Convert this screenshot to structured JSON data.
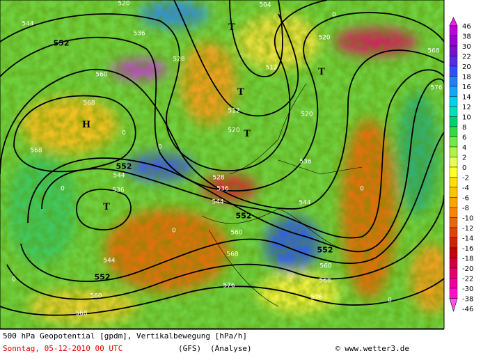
{
  "contour_labels": [
    "544",
    "552",
    "536",
    "528",
    "560",
    "568",
    "568",
    "552",
    "544",
    "536",
    "528",
    "536",
    "544",
    "552",
    "544",
    "536",
    "520",
    "512",
    "512",
    "520",
    "520",
    "504",
    "520",
    "568",
    "576",
    "560",
    "568",
    "576",
    "576",
    "568",
    "560",
    "552",
    "544",
    "552",
    "560",
    "568",
    "0",
    "0",
    "0",
    "0",
    "0",
    "0",
    "0",
    "0"
  ],
  "markers": [
    "H",
    "T",
    "T",
    "T",
    "T",
    "T"
  ],
  "colorbar": {
    "levels": [
      {
        "label": 46,
        "color": "#f020f0"
      },
      {
        "label": 38,
        "color": "#c000e0"
      },
      {
        "label": 30,
        "color": "#9a00d8"
      },
      {
        "label": 22,
        "color": "#7a10d0"
      },
      {
        "label": 20,
        "color": "#5a28e8"
      },
      {
        "label": 18,
        "color": "#3050ff"
      },
      {
        "label": 16,
        "color": "#2080ff"
      },
      {
        "label": 14,
        "color": "#10a8ff"
      },
      {
        "label": 12,
        "color": "#00d0f0"
      },
      {
        "label": 10,
        "color": "#00e0b8"
      },
      {
        "label": 8,
        "color": "#00d070"
      },
      {
        "label": 6,
        "color": "#30dc40"
      },
      {
        "label": 4,
        "color": "#70ec40"
      },
      {
        "label": 2,
        "color": "#b0f440"
      },
      {
        "label": 0,
        "color": "#e8ff50"
      },
      {
        "label": -2,
        "color": "#ffff30"
      },
      {
        "label": -4,
        "color": "#ffe000"
      },
      {
        "label": -6,
        "color": "#ffc400"
      },
      {
        "label": -8,
        "color": "#ffa400"
      },
      {
        "label": -10,
        "color": "#ff8400"
      },
      {
        "label": -12,
        "color": "#f06400"
      },
      {
        "label": -14,
        "color": "#e04400"
      },
      {
        "label": -16,
        "color": "#d02400"
      },
      {
        "label": -18,
        "color": "#c00808"
      },
      {
        "label": -20,
        "color": "#d00040"
      },
      {
        "label": -22,
        "color": "#e00070"
      },
      {
        "label": -30,
        "color": "#f000a0"
      },
      {
        "label": -38,
        "color": "#ff10c8"
      },
      {
        "label": -46,
        "color": "#ff50e8"
      }
    ]
  },
  "footer": {
    "title": "500 hPa Geopotential [gpdm], Vertikalbewegung [hPa/h]",
    "date": "Sonntag, 05-12-2010  00 UTC",
    "model": "(GFS)",
    "run": "(Analyse)",
    "credit": "© www.wetter3.de"
  }
}
